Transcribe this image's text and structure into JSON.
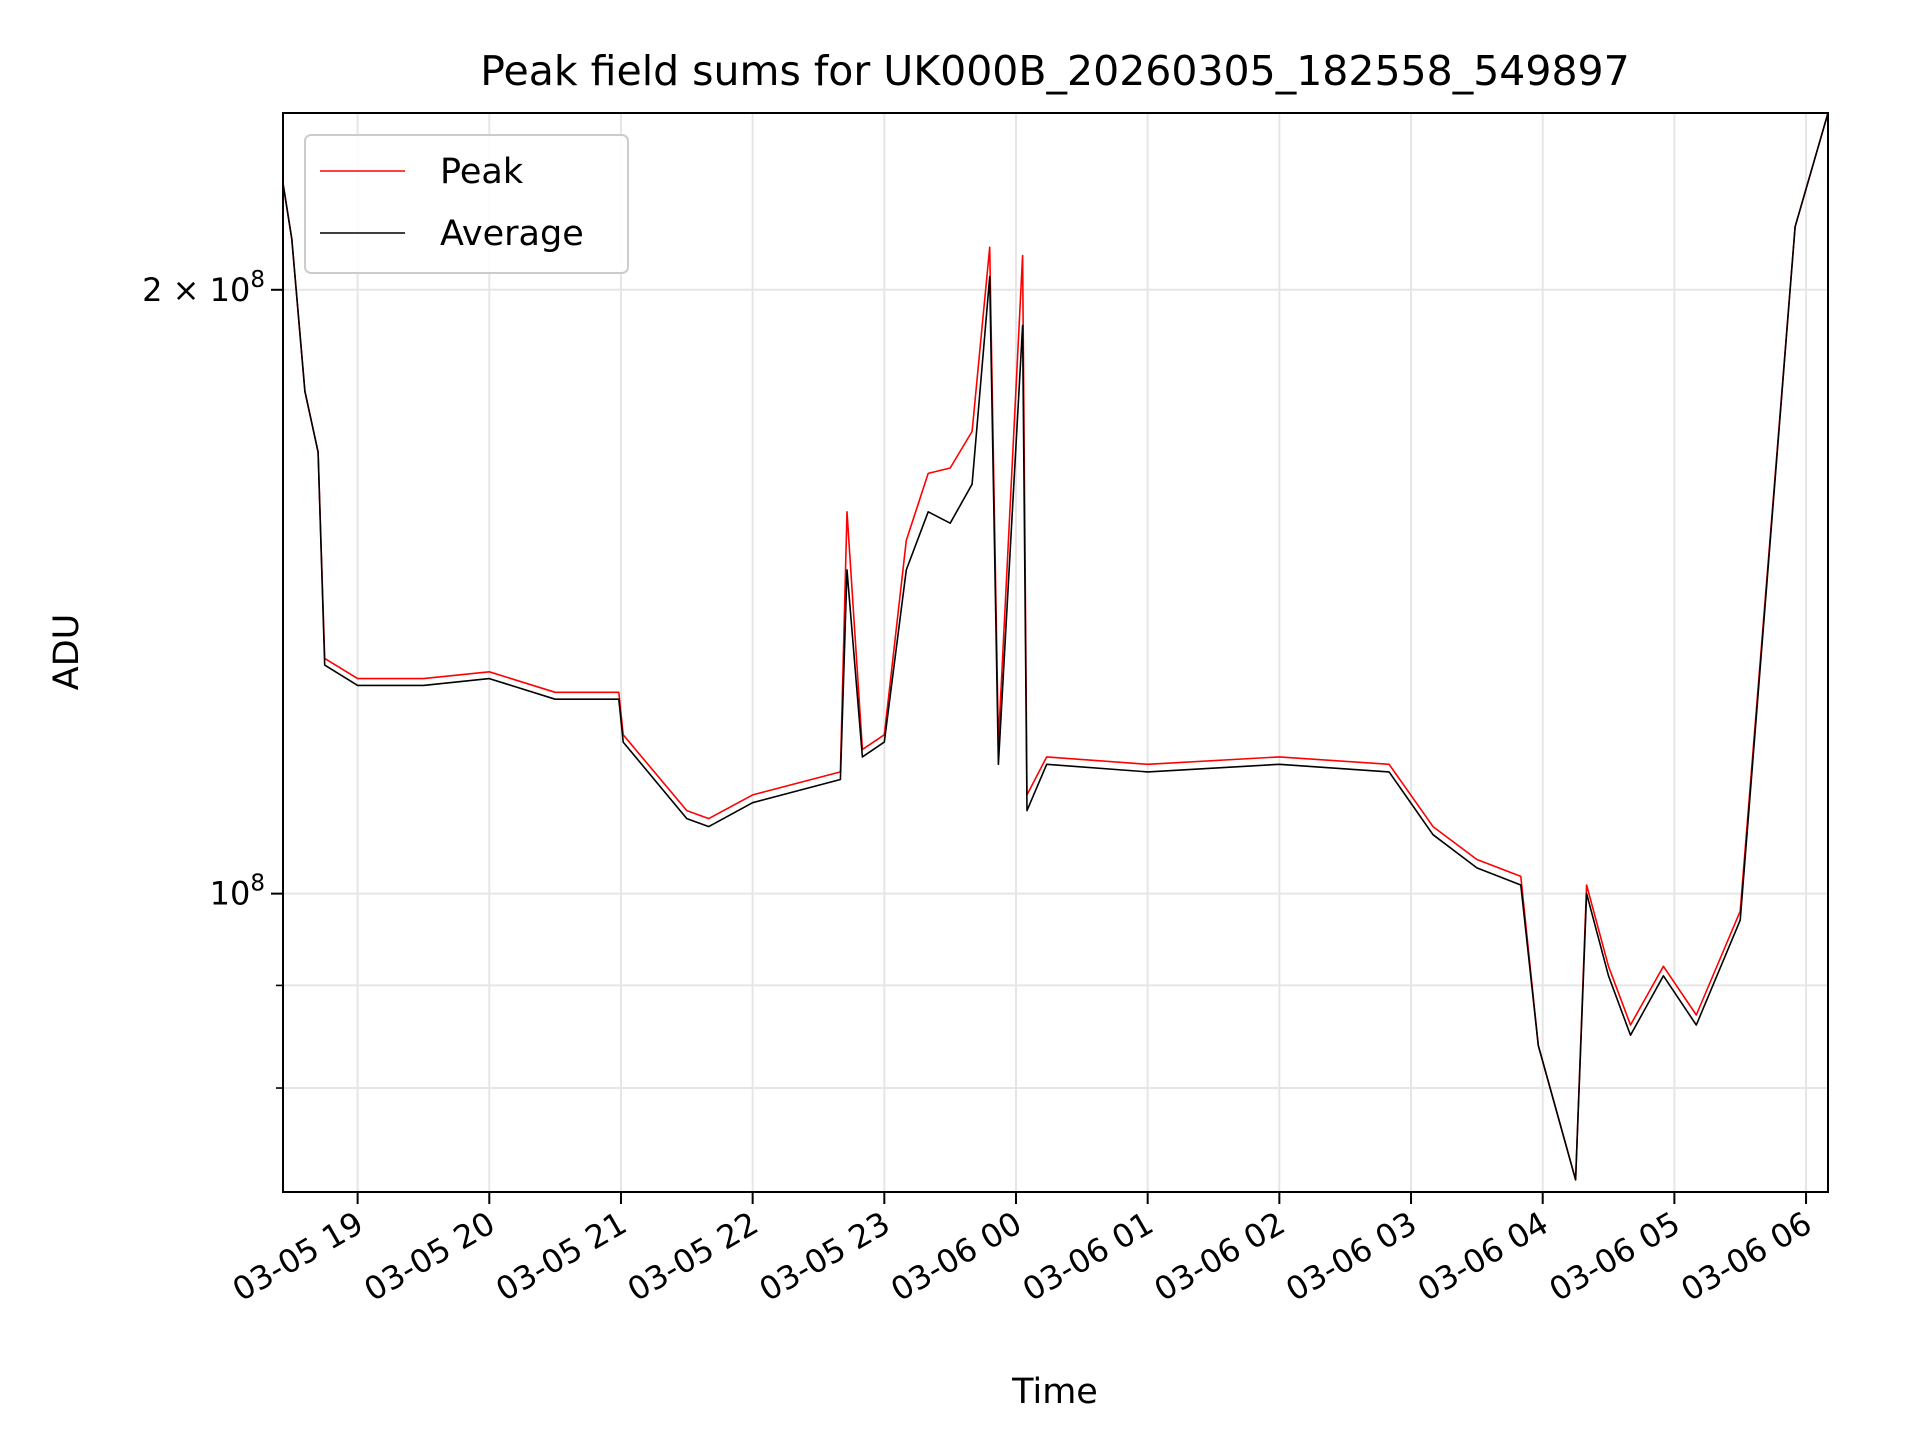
{
  "chart_data": {
    "type": "line",
    "title": "Peak field sums for UK000B_20260305_182558_549897",
    "xlabel": "Time",
    "ylabel": "ADU",
    "x_scale": "time",
    "y_scale": "log",
    "xlim": [
      "2026-03-05 18:26",
      "2026-03-06 06:10"
    ],
    "ylim": [
      71000000,
      245000000
    ],
    "x_ticks": [
      "03-05 19",
      "03-05 20",
      "03-05 21",
      "03-05 22",
      "03-05 23",
      "03-06 00",
      "03-06 01",
      "03-06 02",
      "03-06 03",
      "03-06 04",
      "03-06 05",
      "03-06 06"
    ],
    "y_ticks": [
      {
        "value": 200000000,
        "label": "2 × 10^8",
        "base": "2 × 10",
        "exp": "8"
      },
      {
        "value": 100000000,
        "label": "10^8",
        "base": "10",
        "exp": "8"
      }
    ],
    "y_minor_ticks": [
      90000000,
      80000000
    ],
    "grid": true,
    "legend": {
      "position": "top-left"
    },
    "x": [
      "2026-03-05 18:26",
      "2026-03-05 18:30",
      "2026-03-05 18:36",
      "2026-03-05 18:42",
      "2026-03-05 18:45",
      "2026-03-05 19:00",
      "2026-03-05 19:30",
      "2026-03-05 20:00",
      "2026-03-05 20:30",
      "2026-03-05 20:59",
      "2026-03-05 21:01",
      "2026-03-05 21:30",
      "2026-03-05 21:40",
      "2026-03-05 22:00",
      "2026-03-05 22:40",
      "2026-03-05 22:43",
      "2026-03-05 22:50",
      "2026-03-05 23:00",
      "2026-03-05 23:10",
      "2026-03-05 23:20",
      "2026-03-05 23:30",
      "2026-03-05 23:40",
      "2026-03-05 23:48",
      "2026-03-05 23:52",
      "2026-03-06 00:03",
      "2026-03-06 00:05",
      "2026-03-06 00:14",
      "2026-03-06 01:00",
      "2026-03-06 02:00",
      "2026-03-06 02:50",
      "2026-03-06 03:10",
      "2026-03-06 03:30",
      "2026-03-06 03:50",
      "2026-03-06 03:58",
      "2026-03-06 04:15",
      "2026-03-06 04:20",
      "2026-03-06 04:30",
      "2026-03-06 04:40",
      "2026-03-06 04:55",
      "2026-03-06 05:10",
      "2026-03-06 05:30",
      "2026-03-06 05:55",
      "2026-03-06 06:10"
    ],
    "series": [
      {
        "name": "Peak",
        "color": "#ff0000",
        "values": [
          226000000,
          212000000,
          178000000,
          166000000,
          131000000,
          128000000,
          128000000,
          129000000,
          126000000,
          126000000,
          120000000,
          110000000,
          109000000,
          112000000,
          115000000,
          155000000,
          118000000,
          120000000,
          150000000,
          162000000,
          163000000,
          170000000,
          210000000,
          119000000,
          208000000,
          112000000,
          117000000,
          116000000,
          117000000,
          116000000,
          108000000,
          104000000,
          102000000,
          84000000,
          72000000,
          101000000,
          92000000,
          86000000,
          92000000,
          87000000,
          98000000,
          215000000,
          245000000
        ]
      },
      {
        "name": "Average",
        "color": "#000000",
        "values": [
          226000000,
          212000000,
          178000000,
          166000000,
          130000000,
          127000000,
          127000000,
          128000000,
          125000000,
          125000000,
          119000000,
          109000000,
          108000000,
          111000000,
          114000000,
          145000000,
          117000000,
          119000000,
          145000000,
          155000000,
          153000000,
          160000000,
          203000000,
          116000000,
          192000000,
          110000000,
          116000000,
          115000000,
          116000000,
          115000000,
          107000000,
          103000000,
          101000000,
          84000000,
          72000000,
          100000000,
          91000000,
          85000000,
          91000000,
          86000000,
          97000000,
          215000000,
          245000000
        ]
      }
    ]
  }
}
